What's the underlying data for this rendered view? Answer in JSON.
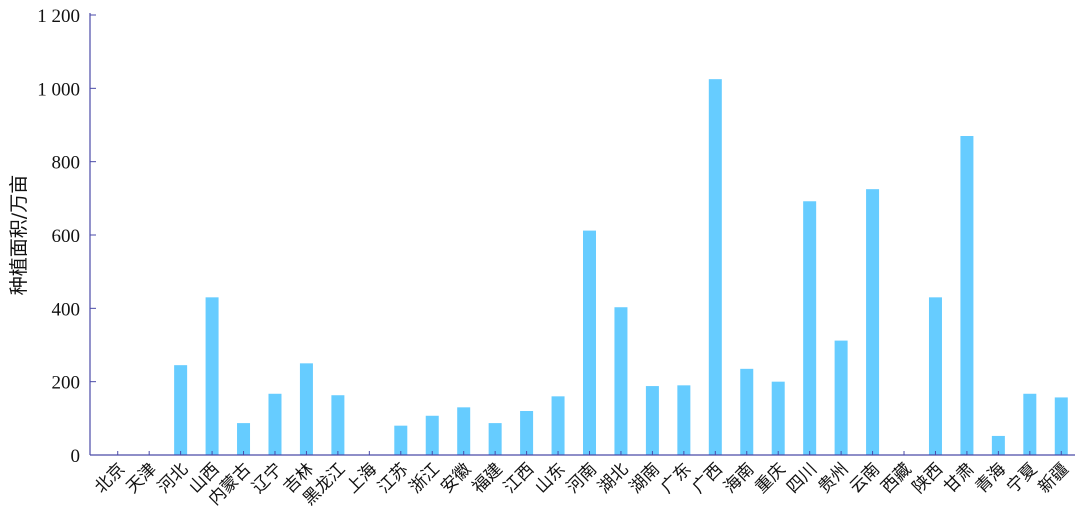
{
  "chart_data": {
    "type": "bar",
    "ylabel": "种植面积/万亩",
    "xlabel": "",
    "ylim": [
      0,
      1200
    ],
    "yticks": [
      0,
      200,
      400,
      600,
      800,
      1000,
      1200
    ],
    "ytick_labels": [
      "0",
      "200",
      "400",
      "600",
      "800",
      "1 000",
      "1 200"
    ],
    "bar_color": "#66ccff",
    "axis_color": "#4a4aa8",
    "grid": false,
    "categories": [
      "北京",
      "天津",
      "河北",
      "山西",
      "内蒙古",
      "辽宁",
      "吉林",
      "黑龙江",
      "上海",
      "江苏",
      "浙江",
      "安徽",
      "福建",
      "江西",
      "山东",
      "河南",
      "湖北",
      "湖南",
      "广东",
      "广西",
      "海南",
      "重庆",
      "四川",
      "贵州",
      "云南",
      "西藏",
      "陕西",
      "甘肃",
      "青海",
      "宁夏",
      "新疆"
    ],
    "values": [
      0,
      0,
      245,
      430,
      87,
      167,
      250,
      163,
      0,
      80,
      107,
      130,
      87,
      120,
      160,
      612,
      403,
      188,
      190,
      1025,
      235,
      200,
      692,
      312,
      725,
      0,
      430,
      870,
      52,
      167,
      157
    ]
  }
}
